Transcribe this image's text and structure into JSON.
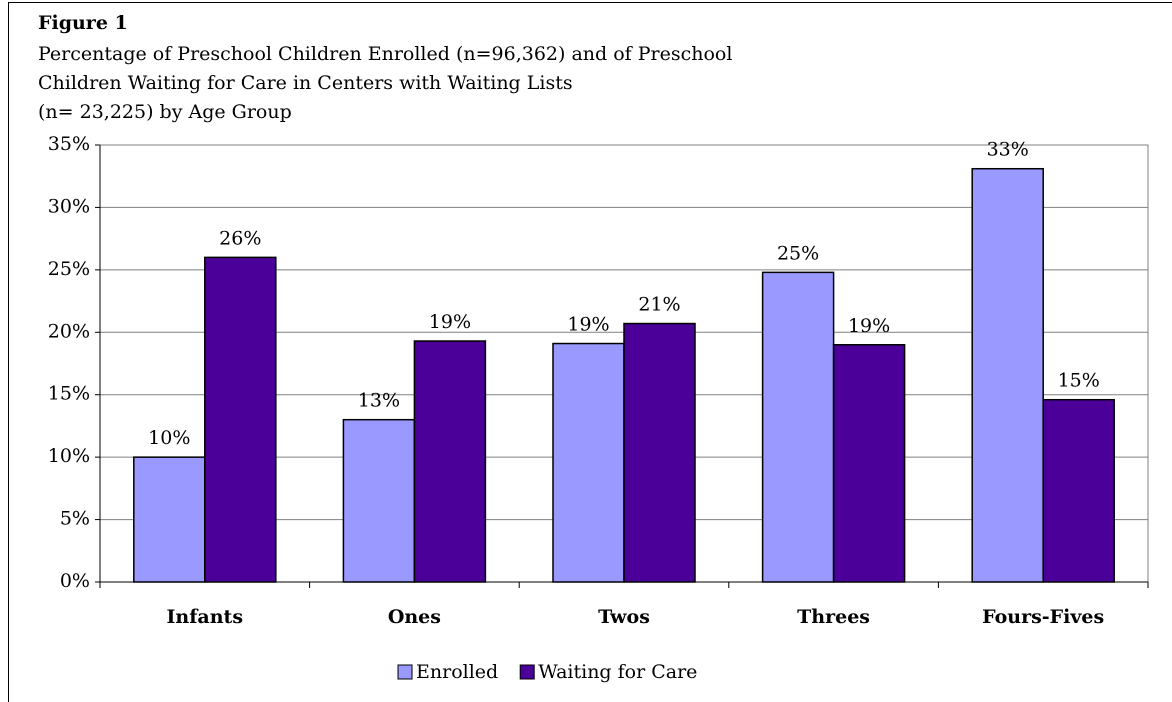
{
  "chart_data": {
    "type": "bar",
    "title": "Figure 1",
    "subtitle": [
      "Percentage of Preschool Children Enrolled (n=96,362) and of Preschool",
      "Children Waiting for Care in Centers with Waiting Lists",
      "(n= 23,225) by Age Group"
    ],
    "categories": [
      "Infants",
      "Ones",
      "Twos",
      "Threes",
      "Fours-Fives"
    ],
    "series": [
      {
        "name": "Enrolled",
        "color": "#9999ff",
        "values": [
          10,
          13,
          19.1,
          24.8,
          33.1
        ],
        "value_labels": [
          "10%",
          "13%",
          "19%",
          "25%",
          "33%"
        ]
      },
      {
        "name": "Waiting for Care",
        "color": "#4b0099",
        "values": [
          26,
          19.3,
          20.7,
          19,
          14.6
        ],
        "value_labels": [
          "26%",
          "19%",
          "21%",
          "19%",
          "15%"
        ]
      }
    ],
    "ylim": [
      0,
      35
    ],
    "yticks": [
      {
        "value": 0,
        "label": "0%"
      },
      {
        "value": 5,
        "label": "5%"
      },
      {
        "value": 10,
        "label": "10%"
      },
      {
        "value": 15,
        "label": "15%"
      },
      {
        "value": 20,
        "label": "20%"
      },
      {
        "value": 25,
        "label": "25%"
      },
      {
        "value": 30,
        "label": "30%"
      },
      {
        "value": 35,
        "label": "35%"
      }
    ],
    "grid": true,
    "legend": "bottom"
  }
}
